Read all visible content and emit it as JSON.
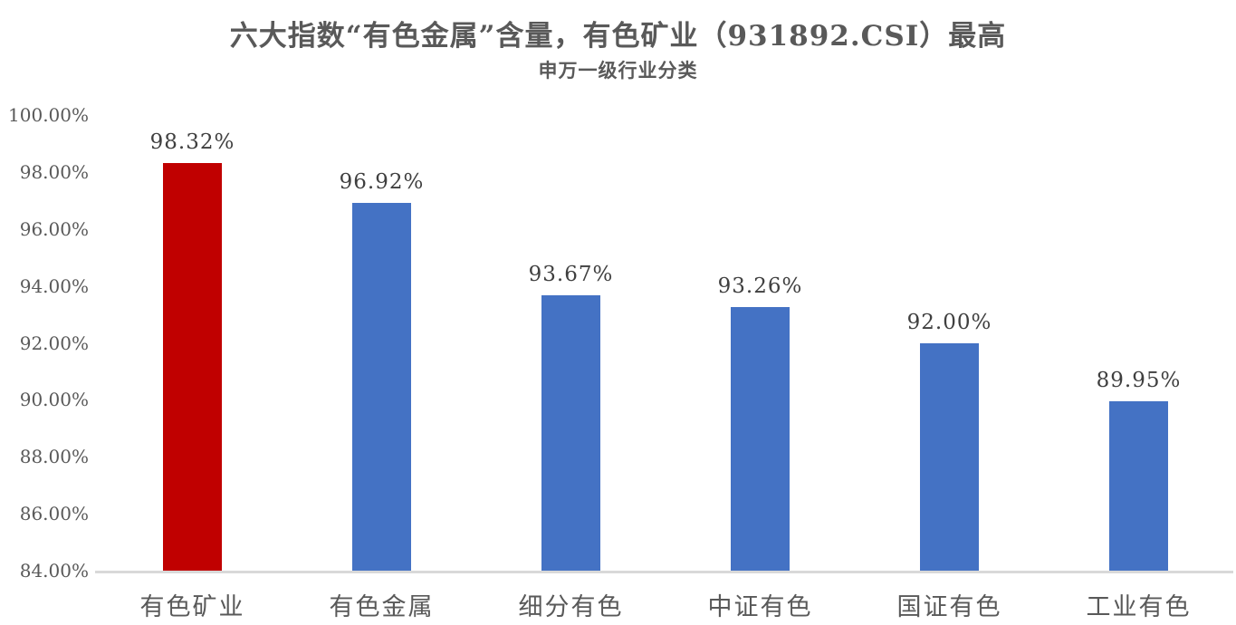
{
  "header": {
    "title": "六大指数“有色金属”含量，有色矿业（931892.CSI）最高",
    "subtitle": "申万一级行业分类"
  },
  "chart_data": {
    "type": "bar",
    "title": "六大指数“有色金属”含量，有色矿业（931892.CSI）最高",
    "subtitle": "申万一级行业分类",
    "categories": [
      "有色矿业",
      "有色金属",
      "细分有色",
      "中证有色",
      "国证有色",
      "工业有色"
    ],
    "values": [
      98.32,
      96.92,
      93.67,
      93.26,
      92.0,
      89.95
    ],
    "data_labels": [
      "98.32%",
      "96.92%",
      "93.67%",
      "93.26%",
      "92.00%",
      "89.95%"
    ],
    "bar_colors": [
      "#C00000",
      "#4472C4",
      "#4472C4",
      "#4472C4",
      "#4472C4",
      "#4472C4"
    ],
    "highlight_category": "有色矿业",
    "highlight_color": "#C00000",
    "default_bar_color": "#4472C4",
    "xlabel": "",
    "ylabel": "",
    "ylim": [
      84,
      100
    ],
    "ytick_step": 2,
    "ytick_labels": [
      "84.00%",
      "86.00%",
      "88.00%",
      "90.00%",
      "92.00%",
      "94.00%",
      "96.00%",
      "98.00%",
      "100.00%"
    ],
    "grid": false,
    "legend": false,
    "axis_line_color": "#D9D9D9",
    "axis_label_color": "#595959",
    "value_label_color": "#3F3F3F"
  }
}
